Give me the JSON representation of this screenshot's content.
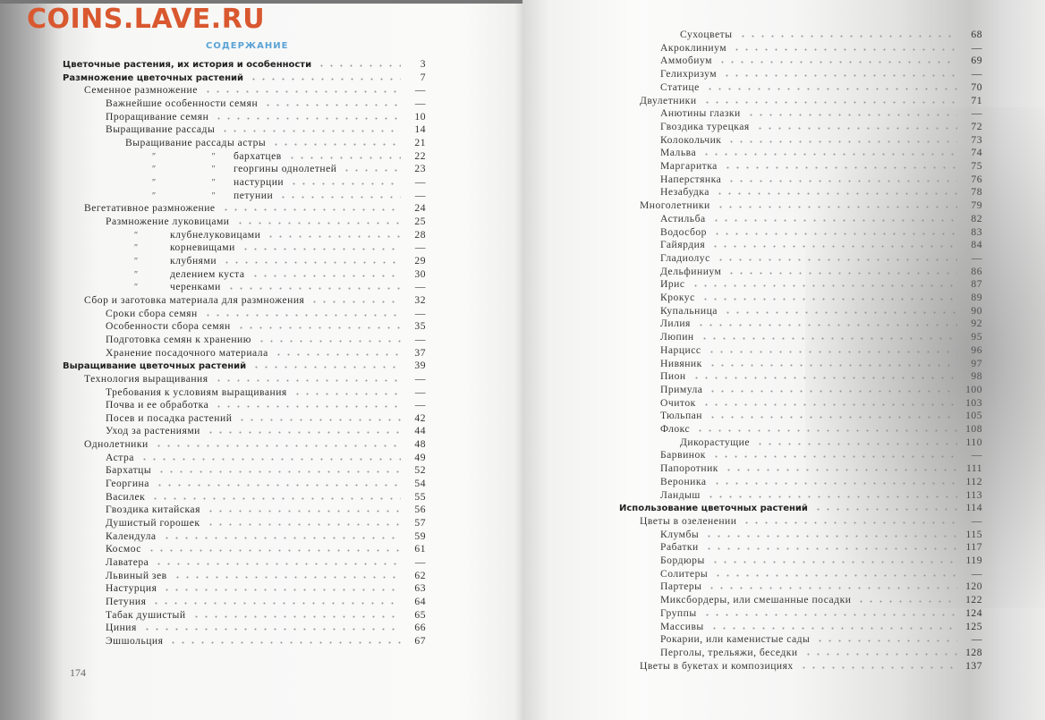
{
  "watermark": "COINS.LAVE.RU",
  "toc_title": "СОДЕРЖАНИЕ",
  "page_number_left": "174",
  "colors": {
    "watermark": "#d9582f",
    "title": "#5aa3d6"
  },
  "left_entries": [
    {
      "text": "Цветочные растения, их история и особенности",
      "page": "3",
      "level": 0,
      "bold": true
    },
    {
      "text": "Размножение цветочных растений",
      "page": "7",
      "level": 0,
      "bold": true
    },
    {
      "text": "Семенное размножение",
      "page": "—",
      "level": 1
    },
    {
      "text": "Важнейшие особенности семян",
      "page": "—",
      "level": 2
    },
    {
      "text": "Проращивание семян",
      "page": "10",
      "level": 2
    },
    {
      "text": "Выращивание рассады",
      "page": "14",
      "level": 2
    },
    {
      "text": "Выращивание рассады астры",
      "page": "21",
      "level": 3
    },
    {
      "text": "бархатцев",
      "page": "22",
      "ditto": "double",
      "marks": "″  ″"
    },
    {
      "text": "георгины однолетней",
      "page": "23",
      "ditto": "double",
      "marks": "″  ″"
    },
    {
      "text": "настурции",
      "page": "—",
      "ditto": "double",
      "marks": "″  ″"
    },
    {
      "text": "петунии",
      "page": "—",
      "ditto": "double",
      "marks": "″  ″"
    },
    {
      "text": "Вегетативное размножение",
      "page": "24",
      "level": 1
    },
    {
      "text": "Размножение луковицами",
      "page": "25",
      "level": 2
    },
    {
      "text": "клубнелуковицами",
      "page": "28",
      "ditto": "single",
      "marks": "″"
    },
    {
      "text": "корневищами",
      "page": "—",
      "ditto": "single",
      "marks": "″"
    },
    {
      "text": "клубнями",
      "page": "29",
      "ditto": "single",
      "marks": "″"
    },
    {
      "text": "делением куста",
      "page": "30",
      "ditto": "single",
      "marks": "″"
    },
    {
      "text": "черенками",
      "page": "—",
      "ditto": "single",
      "marks": "″"
    },
    {
      "text": "Сбор и заготовка материала для размножения",
      "page": "32",
      "level": 1
    },
    {
      "text": "Сроки сбора семян",
      "page": "—",
      "level": 2
    },
    {
      "text": "Особенности сбора семян",
      "page": "35",
      "level": 2
    },
    {
      "text": "Подготовка семян к хранению",
      "page": "—",
      "level": 2
    },
    {
      "text": "Хранение посадочного материала",
      "page": "37",
      "level": 2
    },
    {
      "text": "Выращивание цветочных растений",
      "page": "39",
      "level": 0,
      "bold": true
    },
    {
      "text": "Технология выращивания",
      "page": "—",
      "level": 1
    },
    {
      "text": "Требования к условиям выращивания",
      "page": "—",
      "level": 2
    },
    {
      "text": "Почва и ее обработка",
      "page": "—",
      "level": 2
    },
    {
      "text": "Посев и посадка растений",
      "page": "42",
      "level": 2
    },
    {
      "text": "Уход за растениями",
      "page": "44",
      "level": 2
    },
    {
      "text": "Однолетники",
      "page": "48",
      "level": 1
    },
    {
      "text": "Астра",
      "page": "49",
      "level": 2
    },
    {
      "text": "Бархатцы",
      "page": "52",
      "level": 2
    },
    {
      "text": "Георгина",
      "page": "54",
      "level": 2
    },
    {
      "text": "Василек",
      "page": "55",
      "level": 2
    },
    {
      "text": "Гвоздика китайская",
      "page": "56",
      "level": 2
    },
    {
      "text": "Душистый горошек",
      "page": "57",
      "level": 2
    },
    {
      "text": "Календула",
      "page": "59",
      "level": 2
    },
    {
      "text": "Космос",
      "page": "61",
      "level": 2
    },
    {
      "text": "Лаватера",
      "page": "—",
      "level": 2
    },
    {
      "text": "Львиный зев",
      "page": "62",
      "level": 2
    },
    {
      "text": "Настурция",
      "page": "63",
      "level": 2
    },
    {
      "text": "Петуния",
      "page": "64",
      "level": 2
    },
    {
      "text": "Табак душистый",
      "page": "65",
      "level": 2
    },
    {
      "text": "Циния",
      "page": "66",
      "level": 2
    },
    {
      "text": "Эшшольция",
      "page": "67",
      "level": 2
    }
  ],
  "right_entries": [
    {
      "text": "Сухоцветы",
      "page": "68",
      "level": 3
    },
    {
      "text": "Акроклиниум",
      "page": "—",
      "level": 2
    },
    {
      "text": "Аммобиум",
      "page": "69",
      "level": 2
    },
    {
      "text": "Гелихризум",
      "page": "—",
      "level": 2
    },
    {
      "text": "Статице",
      "page": "70",
      "level": 2
    },
    {
      "text": "Двулетники",
      "page": "71",
      "level": 1
    },
    {
      "text": "Анютины глазки",
      "page": "—",
      "level": 2
    },
    {
      "text": "Гвоздика турецкая",
      "page": "72",
      "level": 2
    },
    {
      "text": "Колокольчик",
      "page": "73",
      "level": 2
    },
    {
      "text": "Мальва",
      "page": "74",
      "level": 2
    },
    {
      "text": "Маргаритка",
      "page": "75",
      "level": 2
    },
    {
      "text": "Наперстянка",
      "page": "76",
      "level": 2
    },
    {
      "text": "Незабудка",
      "page": "78",
      "level": 2
    },
    {
      "text": "Многолетники",
      "page": "79",
      "level": 1
    },
    {
      "text": "Астильба",
      "page": "82",
      "level": 2
    },
    {
      "text": "Водосбор",
      "page": "83",
      "level": 2
    },
    {
      "text": "Гайярдия",
      "page": "84",
      "level": 2
    },
    {
      "text": "Гладиолус",
      "page": "—",
      "level": 2
    },
    {
      "text": "Дельфиниум",
      "page": "86",
      "level": 2
    },
    {
      "text": "Ирис",
      "page": "87",
      "level": 2
    },
    {
      "text": "Крокус",
      "page": "89",
      "level": 2
    },
    {
      "text": "Купальница",
      "page": "90",
      "level": 2
    },
    {
      "text": "Лилия",
      "page": "92",
      "level": 2
    },
    {
      "text": "Люпин",
      "page": "95",
      "level": 2
    },
    {
      "text": "Нарцисс",
      "page": "96",
      "level": 2
    },
    {
      "text": "Нивяник",
      "page": "97",
      "level": 2
    },
    {
      "text": "Пион",
      "page": "98",
      "level": 2
    },
    {
      "text": "Примула",
      "page": "100",
      "level": 2
    },
    {
      "text": "Очиток",
      "page": "103",
      "level": 2
    },
    {
      "text": "Тюльпан",
      "page": "105",
      "level": 2
    },
    {
      "text": "Флокс",
      "page": "108",
      "level": 2
    },
    {
      "text": "Дикорастущие",
      "page": "110",
      "level": 3
    },
    {
      "text": "Барвинок",
      "page": "—",
      "level": 2
    },
    {
      "text": "Папоротник",
      "page": "111",
      "level": 2
    },
    {
      "text": "Вероника",
      "page": "112",
      "level": 2
    },
    {
      "text": "Ландыш",
      "page": "113",
      "level": 2
    },
    {
      "text": "Использование цветочных растений",
      "page": "114",
      "level": 0,
      "bold": true
    },
    {
      "text": "Цветы в озеленении",
      "page": "—",
      "level": 1
    },
    {
      "text": "Клумбы",
      "page": "115",
      "level": 2
    },
    {
      "text": "Рабатки",
      "page": "117",
      "level": 2
    },
    {
      "text": "Бордюры",
      "page": "119",
      "level": 2
    },
    {
      "text": "Солитеры",
      "page": "—",
      "level": 2
    },
    {
      "text": "Партеры",
      "page": "120",
      "level": 2
    },
    {
      "text": "Миксбордеры, или смешанные посадки",
      "page": "122",
      "level": 2
    },
    {
      "text": "Группы",
      "page": "124",
      "level": 2
    },
    {
      "text": "Массивы",
      "page": "125",
      "level": 2
    },
    {
      "text": "Рокарии, или каменистые сады",
      "page": "—",
      "level": 2
    },
    {
      "text": "Перголы, трельяжи, беседки",
      "page": "128",
      "level": 2
    },
    {
      "text": "Цветы в букетах и композициях",
      "page": "137",
      "level": 1
    }
  ]
}
